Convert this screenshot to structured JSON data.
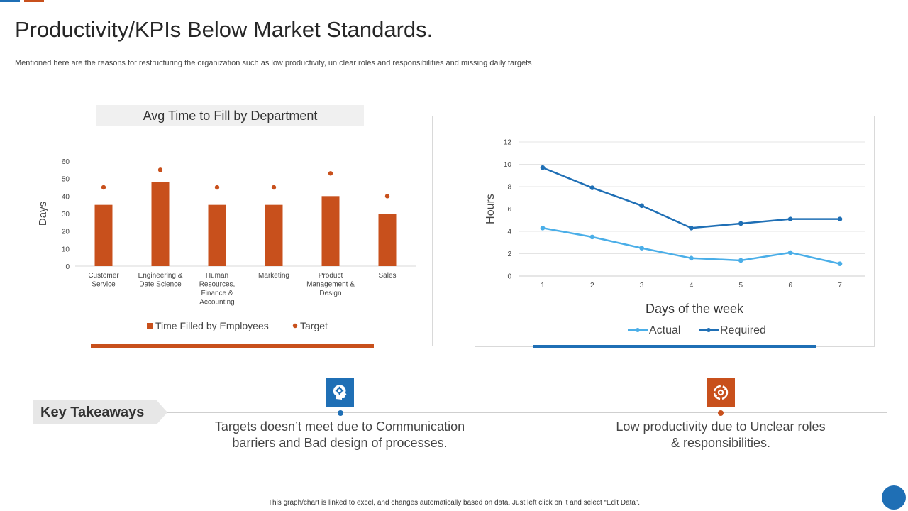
{
  "page": {
    "title": "Productivity/KPIs Below Market Standards.",
    "subtitle": "Mentioned here are the reasons for restructuring the organization such as low productivity, un clear roles and responsibilities and missing daily targets",
    "footnote": "This graph/chart is linked to excel, and changes automatically based on data. Just left click on it and select “Edit Data”."
  },
  "colors": {
    "orange": "#c8501c",
    "blue_dark": "#1f6fb5",
    "blue_light": "#4aaee8"
  },
  "chart_data": [
    {
      "type": "bar",
      "title": "Avg Time to Fill by Department",
      "ylabel": "Days",
      "xlabel": "",
      "ylim": [
        0,
        60
      ],
      "yticks": [
        0,
        10,
        20,
        30,
        40,
        50,
        60
      ],
      "grid": false,
      "legend": "bottom",
      "categories": [
        [
          "Customer",
          "Service"
        ],
        [
          "Engineering &",
          "Date Science"
        ],
        [
          "Human",
          "Resources,",
          "Finance &",
          "Accounting"
        ],
        [
          "Marketing"
        ],
        [
          "Product",
          "Management &",
          "Design"
        ],
        [
          "Sales"
        ]
      ],
      "series": [
        {
          "name": "Time Filled by Employees",
          "kind": "bar",
          "color": "#c8501c",
          "values": [
            35,
            48,
            35,
            35,
            40,
            30
          ]
        },
        {
          "name": "Target",
          "kind": "dot",
          "color": "#c8501c",
          "values": [
            45,
            55,
            45,
            45,
            53,
            40
          ]
        }
      ]
    },
    {
      "type": "line",
      "title": "",
      "xlabel": "Days of the week",
      "ylabel": "Hours",
      "ylim": [
        0,
        12
      ],
      "yticks": [
        0,
        2,
        4,
        6,
        8,
        10,
        12
      ],
      "grid": true,
      "legend": "bottom",
      "x": [
        1,
        2,
        3,
        4,
        5,
        6,
        7
      ],
      "series": [
        {
          "name": "Actual",
          "color": "#4aaee8",
          "values": [
            4.3,
            3.5,
            2.5,
            1.6,
            1.4,
            2.1,
            1.1
          ]
        },
        {
          "name": "Required",
          "color": "#1f6fb5",
          "values": [
            9.7,
            7.9,
            6.3,
            4.3,
            4.7,
            5.1,
            5.1
          ]
        }
      ]
    }
  ],
  "takeaways": {
    "label": "Key Takeaways",
    "items": [
      {
        "icon": "head-gear-icon",
        "lines": [
          "Targets doesn’t meet due to Communication",
          "barriers and Bad design of processes."
        ]
      },
      {
        "icon": "circular-arrows-icon",
        "lines": [
          "Low productivity due to Unclear roles",
          "& responsibilities."
        ]
      }
    ]
  }
}
